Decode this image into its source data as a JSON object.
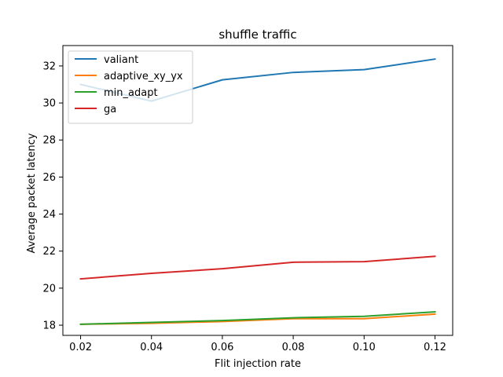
{
  "chart_data": {
    "type": "line",
    "title": "shuffle traffic",
    "xlabel": "Flit injection rate",
    "ylabel": "Average packet latency",
    "x": [
      0.02,
      0.04,
      0.06,
      0.08,
      0.1,
      0.12
    ],
    "xticks": [
      "0.02",
      "0.04",
      "0.06",
      "0.08",
      "0.10",
      "0.12"
    ],
    "yticks": [
      "18",
      "20",
      "22",
      "24",
      "26",
      "28",
      "30",
      "32"
    ],
    "xlim": [
      0.015,
      0.125
    ],
    "ylim": [
      17.45,
      33.1
    ],
    "grid": false,
    "legend_position": "upper left",
    "series": [
      {
        "name": "valiant",
        "color": "#1f77b4",
        "values": [
          31.0,
          30.1,
          31.25,
          31.65,
          31.8,
          32.37
        ]
      },
      {
        "name": "adaptive_xy_yx",
        "color": "#ff7f0e",
        "values": [
          18.05,
          18.1,
          18.2,
          18.35,
          18.35,
          18.6
        ]
      },
      {
        "name": "min_adapt",
        "color": "#2ca02c",
        "values": [
          18.05,
          18.15,
          18.25,
          18.4,
          18.48,
          18.72
        ]
      },
      {
        "name": "ga",
        "color": "#d62728",
        "values": [
          20.5,
          20.8,
          21.05,
          21.4,
          21.43,
          21.72
        ]
      }
    ]
  }
}
